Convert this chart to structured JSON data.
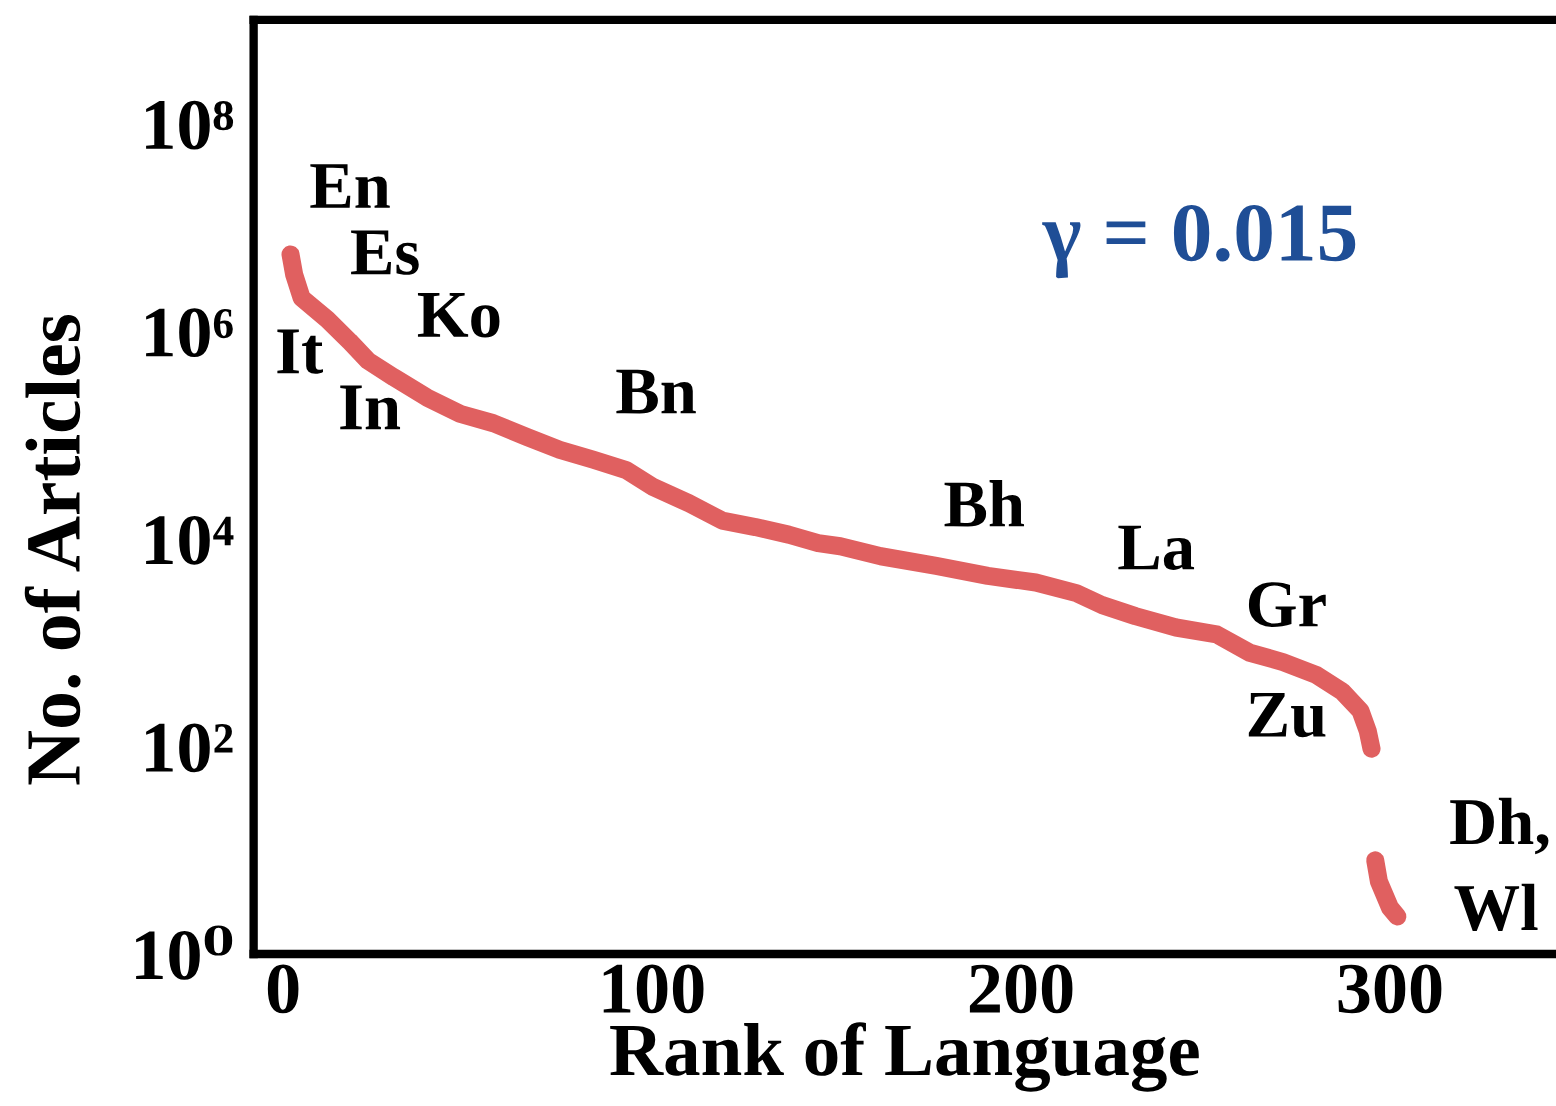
{
  "chart_data": {
    "type": "line",
    "xlabel": "Rank of Language",
    "ylabel": "No. of Articles",
    "log": "y",
    "line_style": "solid",
    "grid": false,
    "xlim": [
      -8,
      345
    ],
    "xticks": [
      0,
      100,
      200,
      300
    ],
    "ylim": [
      1,
      1000000000
    ],
    "yticks": [
      {
        "value": 1,
        "label": "10⁰"
      },
      {
        "value": 100,
        "label": "10²"
      },
      {
        "value": 10000,
        "label": "10⁴"
      },
      {
        "value": 1000000,
        "label": "10⁶"
      },
      {
        "value": 100000000,
        "label": "10⁸"
      }
    ],
    "series": [
      {
        "color": "#e06060",
        "x": [
          2,
          3,
          5,
          12,
          18,
          23,
          30,
          39,
          48,
          57,
          66,
          75,
          84,
          93,
          100,
          110,
          119,
          128,
          137,
          145,
          151,
          162,
          177,
          191,
          204,
          215,
          222,
          231,
          242,
          253,
          262,
          271,
          280,
          287,
          292,
          294,
          295
        ],
        "values": [
          5500000,
          3500000,
          2100000,
          1300000,
          800000,
          520000,
          360000,
          230000,
          160000,
          130000,
          96000,
          72000,
          58000,
          46000,
          32000,
          22000,
          15000,
          13000,
          11000,
          9100,
          8500,
          6800,
          5500,
          4400,
          3800,
          3000,
          2300,
          1800,
          1400,
          1200,
          800,
          650,
          490,
          340,
          220,
          140,
          95
        ]
      },
      {
        "color": "#e06060",
        "x": [
          296,
          297,
          300,
          302
        ],
        "values": [
          8,
          5,
          2.8,
          2.3
        ]
      }
    ],
    "annotations": [
      "γ = 0.015",
      "En",
      "Es",
      "Ko",
      "It",
      "In",
      "Bn",
      "Bh",
      "La",
      "Gr",
      "Zu",
      "Dh,",
      "Wl"
    ]
  }
}
